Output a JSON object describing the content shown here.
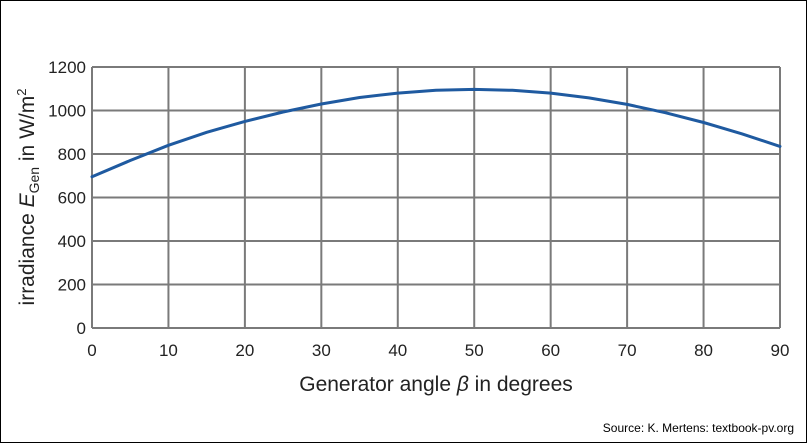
{
  "chart_data": {
    "type": "line",
    "title": "",
    "xlabel": {
      "prefix": "Generator angle ",
      "symbol": "β",
      "suffix": " in degrees"
    },
    "ylabel": {
      "prefix": "irradiance ",
      "symbol": "E",
      "subscript": "Gen",
      "middle": " in W/m",
      "superscript": "2"
    },
    "xlim": [
      0,
      90
    ],
    "ylim": [
      0,
      1200
    ],
    "xticks": [
      "0",
      "10",
      "20",
      "30",
      "40",
      "50",
      "60",
      "70",
      "80",
      "90"
    ],
    "yticks": [
      "0",
      "200",
      "400",
      "600",
      "800",
      "1000",
      "1200"
    ],
    "grid": true,
    "series": [
      {
        "color": "#1f5aa0",
        "x": [
          0,
          5,
          10,
          15,
          20,
          25,
          30,
          35,
          40,
          45,
          50,
          55,
          60,
          65,
          70,
          75,
          80,
          85,
          90
        ],
        "y": [
          695,
          770,
          840,
          900,
          950,
          993,
          1030,
          1060,
          1080,
          1093,
          1097,
          1093,
          1080,
          1058,
          1028,
          990,
          945,
          893,
          835
        ]
      }
    ],
    "source": "Source: K. Mertens: textbook-pv.org"
  }
}
